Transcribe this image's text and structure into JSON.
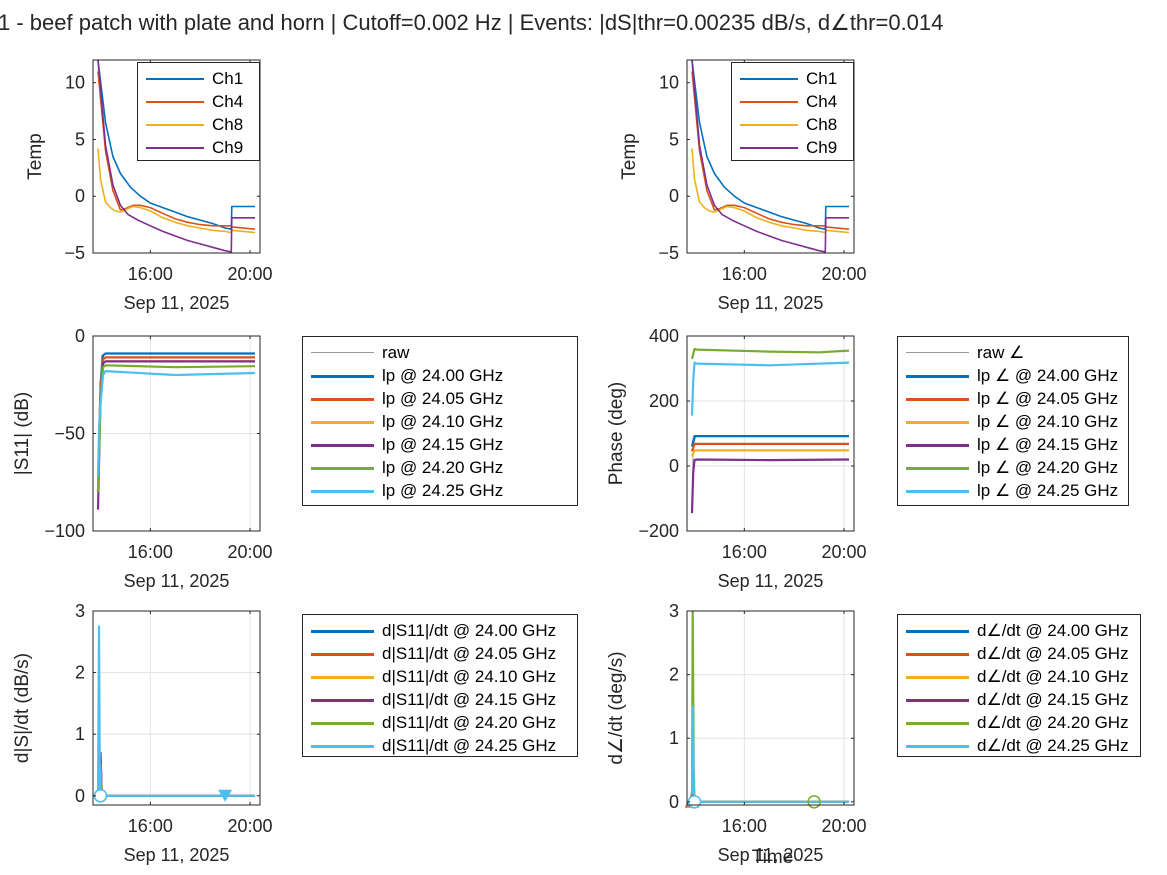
{
  "figure": {
    "title": "1 - beef patch with plate and horn | Cutoff=0.002 Hz | Events: |dS|thr=0.00235 dB/s, d∠thr=0.014",
    "colors": {
      "blue": "#0072BD",
      "orange": "#D95319",
      "yellow": "#EDB120",
      "purple": "#7E2F8E",
      "green": "#77AC30",
      "cyan": "#4DBEEE",
      "gray": "#9a9a9a"
    }
  },
  "chart_data": [
    {
      "id": "temp_left",
      "type": "line",
      "ylabel": "Temp",
      "xlabel": "Sep 11, 2025",
      "xlim": [
        13.7,
        20.4
      ],
      "ylim": [
        -5,
        12
      ],
      "yticks": [
        -5,
        0,
        5,
        10
      ],
      "xticks": [
        16,
        20
      ],
      "xtick_labels": [
        "16:00",
        "20:00"
      ],
      "grid": false,
      "legend": "top-right",
      "series": [
        {
          "name": "Ch1",
          "color": "blue",
          "x": [
            13.9,
            14.2,
            14.5,
            14.8,
            15.2,
            15.6,
            16.0,
            16.5,
            17.0,
            17.5,
            18.0,
            18.5,
            19.0,
            19.25,
            19.27,
            20.2
          ],
          "y": [
            12,
            6.5,
            3.5,
            2.0,
            0.8,
            0.0,
            -0.6,
            -1.0,
            -1.4,
            -1.8,
            -2.1,
            -2.4,
            -2.8,
            -2.9,
            -0.9,
            -0.9
          ]
        },
        {
          "name": "Ch4",
          "color": "orange",
          "x": [
            13.9,
            14.2,
            14.5,
            14.8,
            15.0,
            15.3,
            15.6,
            16.0,
            16.5,
            17.0,
            17.5,
            18.0,
            18.5,
            19.0,
            19.25,
            19.27,
            20.2
          ],
          "y": [
            11,
            4.0,
            0.5,
            -1.2,
            -1.1,
            -0.8,
            -0.8,
            -1.0,
            -1.5,
            -2.0,
            -2.3,
            -2.5,
            -2.6,
            -2.6,
            -2.6,
            -2.7,
            -2.9
          ]
        },
        {
          "name": "Ch8",
          "color": "yellow",
          "x": [
            13.9,
            14.0,
            14.2,
            14.4,
            14.6,
            14.8,
            15.0,
            15.3,
            15.6,
            16.0,
            16.5,
            17.0,
            17.5,
            18.0,
            18.5,
            19.0,
            19.25,
            19.27,
            20.2
          ],
          "y": [
            4.2,
            1.5,
            -0.5,
            -1.0,
            -1.3,
            -1.4,
            -1.2,
            -0.9,
            -1.0,
            -1.3,
            -1.9,
            -2.3,
            -2.6,
            -2.8,
            -3.0,
            -3.1,
            -3.2,
            -3.0,
            -3.2
          ]
        },
        {
          "name": "Ch9",
          "color": "purple",
          "x": [
            13.9,
            14.2,
            14.5,
            14.8,
            15.1,
            15.5,
            16.0,
            16.5,
            17.0,
            17.5,
            18.0,
            18.5,
            19.0,
            19.25,
            19.27,
            20.2
          ],
          "y": [
            12,
            4.5,
            1.0,
            -0.8,
            -1.6,
            -2.1,
            -2.6,
            -3.1,
            -3.5,
            -3.9,
            -4.2,
            -4.5,
            -4.8,
            -4.9,
            -1.9,
            -1.9
          ]
        }
      ]
    },
    {
      "id": "temp_right",
      "type": "line",
      "ylabel": "Temp",
      "xlabel": "Sep 11, 2025",
      "xlim": [
        13.7,
        20.4
      ],
      "ylim": [
        -5,
        12
      ],
      "yticks": [
        -5,
        0,
        5,
        10
      ],
      "xticks": [
        16,
        20
      ],
      "xtick_labels": [
        "16:00",
        "20:00"
      ],
      "grid": false,
      "legend": "top-right",
      "series": [
        {
          "name": "Ch1",
          "color": "blue",
          "x": [
            13.9,
            14.2,
            14.5,
            14.8,
            15.2,
            15.6,
            16.0,
            16.5,
            17.0,
            17.5,
            18.0,
            18.5,
            19.0,
            19.25,
            19.27,
            20.2
          ],
          "y": [
            12,
            6.5,
            3.5,
            2.0,
            0.8,
            0.0,
            -0.6,
            -1.0,
            -1.4,
            -1.8,
            -2.1,
            -2.4,
            -2.8,
            -2.9,
            -0.9,
            -0.9
          ]
        },
        {
          "name": "Ch4",
          "color": "orange",
          "x": [
            13.9,
            14.2,
            14.5,
            14.8,
            15.0,
            15.3,
            15.6,
            16.0,
            16.5,
            17.0,
            17.5,
            18.0,
            18.5,
            19.0,
            19.25,
            19.27,
            20.2
          ],
          "y": [
            11,
            4.0,
            0.5,
            -1.2,
            -1.1,
            -0.8,
            -0.8,
            -1.0,
            -1.5,
            -2.0,
            -2.3,
            -2.5,
            -2.6,
            -2.6,
            -2.6,
            -2.7,
            -2.9
          ]
        },
        {
          "name": "Ch8",
          "color": "yellow",
          "x": [
            13.9,
            14.0,
            14.2,
            14.4,
            14.6,
            14.8,
            15.0,
            15.3,
            15.6,
            16.0,
            16.5,
            17.0,
            17.5,
            18.0,
            18.5,
            19.0,
            19.25,
            19.27,
            20.2
          ],
          "y": [
            4.2,
            1.5,
            -0.5,
            -1.0,
            -1.3,
            -1.4,
            -1.2,
            -0.9,
            -1.0,
            -1.3,
            -1.9,
            -2.3,
            -2.6,
            -2.8,
            -3.0,
            -3.1,
            -3.2,
            -3.0,
            -3.2
          ]
        },
        {
          "name": "Ch9",
          "color": "purple",
          "x": [
            13.9,
            14.2,
            14.5,
            14.8,
            15.1,
            15.5,
            16.0,
            16.5,
            17.0,
            17.5,
            18.0,
            18.5,
            19.0,
            19.25,
            19.27,
            20.2
          ],
          "y": [
            12,
            4.5,
            1.0,
            -0.8,
            -1.6,
            -2.1,
            -2.6,
            -3.1,
            -3.5,
            -3.9,
            -4.2,
            -4.5,
            -4.8,
            -4.9,
            -1.9,
            -1.9
          ]
        }
      ]
    },
    {
      "id": "s11_mag",
      "type": "line",
      "ylabel": "|S11| (dB)",
      "xlabel": "Sep 11, 2025",
      "xlim": [
        13.7,
        20.4
      ],
      "ylim": [
        -100,
        0
      ],
      "yticks": [
        -100,
        -50,
        0
      ],
      "xticks": [
        16,
        20
      ],
      "xtick_labels": [
        "16:00",
        "20:00"
      ],
      "grid": true,
      "legend": "outside-right",
      "series": [
        {
          "name": "raw",
          "color": "gray",
          "x": [
            13.9,
            13.95,
            14.05,
            14.2,
            20.2
          ],
          "y": [
            -88,
            -40,
            -10,
            -9,
            -9
          ]
        },
        {
          "name": "lp @ 24.00 GHz",
          "color": "blue",
          "x": [
            13.9,
            14.0,
            14.1,
            14.2,
            20.2
          ],
          "y": [
            -80,
            -25,
            -10,
            -9,
            -9
          ]
        },
        {
          "name": "lp @ 24.05 GHz",
          "color": "orange",
          "x": [
            13.9,
            14.0,
            14.1,
            14.2,
            20.2
          ],
          "y": [
            -80,
            -28,
            -12,
            -11,
            -11
          ]
        },
        {
          "name": "lp @ 24.10 GHz",
          "color": "yellow",
          "x": [
            13.9,
            14.0,
            14.1,
            14.2,
            20.2
          ],
          "y": [
            -80,
            -30,
            -14,
            -13,
            -13
          ]
        },
        {
          "name": "lp @ 24.15 GHz",
          "color": "purple",
          "x": [
            13.9,
            14.0,
            14.1,
            14.2,
            20.2
          ],
          "y": [
            -89,
            -32,
            -14,
            -13,
            -13
          ]
        },
        {
          "name": "lp @ 24.20 GHz",
          "color": "green",
          "x": [
            13.9,
            14.0,
            14.1,
            14.2,
            17.0,
            20.2
          ],
          "y": [
            -80,
            -34,
            -16,
            -15,
            -16,
            -15.5
          ]
        },
        {
          "name": "lp @ 24.25 GHz",
          "color": "cyan",
          "x": [
            13.9,
            13.95,
            14.0,
            14.1,
            14.2,
            17.0,
            20.2
          ],
          "y": [
            -72,
            -45,
            -35,
            -20,
            -18,
            -20,
            -19
          ]
        }
      ]
    },
    {
      "id": "phase",
      "type": "line",
      "ylabel": "Phase (deg)",
      "xlabel": "Sep 11, 2025",
      "xlim": [
        13.7,
        20.4
      ],
      "ylim": [
        -200,
        400
      ],
      "yticks": [
        -200,
        0,
        200,
        400
      ],
      "xticks": [
        16,
        20
      ],
      "xtick_labels": [
        "16:00",
        "20:00"
      ],
      "grid": true,
      "legend": "outside-right",
      "series": [
        {
          "name": "raw ∠",
          "color": "gray",
          "x": [
            13.9,
            13.95,
            14.05,
            20.2
          ],
          "y": [
            -140,
            60,
            92,
            92
          ]
        },
        {
          "name": "lp ∠ @ 24.00 GHz",
          "color": "blue",
          "x": [
            13.9,
            14.0,
            14.1,
            20.2
          ],
          "y": [
            60,
            92,
            92,
            92
          ]
        },
        {
          "name": "lp ∠ @ 24.05 GHz",
          "color": "orange",
          "x": [
            13.9,
            14.0,
            14.1,
            20.2
          ],
          "y": [
            45,
            68,
            68,
            68
          ]
        },
        {
          "name": "lp ∠ @ 24.10 GHz",
          "color": "yellow",
          "x": [
            13.9,
            14.0,
            14.1,
            20.2
          ],
          "y": [
            30,
            48,
            48,
            48
          ]
        },
        {
          "name": "lp ∠ @ 24.15 GHz",
          "color": "purple",
          "x": [
            13.9,
            13.95,
            14.0,
            14.1,
            17.0,
            20.2
          ],
          "y": [
            -145,
            -20,
            18,
            20,
            18,
            20
          ]
        },
        {
          "name": "lp ∠ @ 24.20 GHz",
          "color": "green",
          "x": [
            13.9,
            14.0,
            14.1,
            17.0,
            19.0,
            20.2
          ],
          "y": [
            330,
            360,
            358,
            352,
            350,
            355
          ]
        },
        {
          "name": "lp ∠ @ 24.25 GHz",
          "color": "cyan",
          "x": [
            13.9,
            13.95,
            14.0,
            14.1,
            17.0,
            20.2
          ],
          "y": [
            155,
            260,
            318,
            315,
            310,
            318
          ]
        }
      ]
    },
    {
      "id": "dS_dt",
      "type": "line",
      "ylabel": "d|S|/dt (dB/s)",
      "xlabel": "Sep 11, 2025",
      "xlim": [
        13.7,
        20.4
      ],
      "ylim": [
        -0.15,
        3.0
      ],
      "yticks": [
        0,
        1,
        2,
        3
      ],
      "xticks": [
        16,
        20
      ],
      "xtick_labels": [
        "16:00",
        "20:00"
      ],
      "grid": true,
      "legend": "outside-right",
      "series": [
        {
          "name": "d|S11|/dt @ 24.00 GHz",
          "color": "blue",
          "x": [
            13.9,
            14.0,
            14.05,
            14.2,
            20.2
          ],
          "y": [
            0,
            0.6,
            0.05,
            0.0,
            0.0
          ]
        },
        {
          "name": "d|S11|/dt @ 24.05 GHz",
          "color": "orange",
          "x": [
            13.9,
            14.0,
            14.05,
            14.2,
            20.2
          ],
          "y": [
            0,
            0.5,
            0.04,
            0.0,
            0.0
          ]
        },
        {
          "name": "d|S11|/dt @ 24.10 GHz",
          "color": "yellow",
          "x": [
            13.9,
            14.0,
            14.05,
            14.2,
            20.2
          ],
          "y": [
            0,
            0.4,
            0.03,
            0.0,
            0.0
          ]
        },
        {
          "name": "d|S11|/dt @ 24.15 GHz",
          "color": "purple",
          "x": [
            13.9,
            14.0,
            14.05,
            14.2,
            20.2
          ],
          "y": [
            0,
            0.7,
            0.05,
            0.0,
            0.0
          ]
        },
        {
          "name": "d|S11|/dt @ 24.20 GHz",
          "color": "green",
          "x": [
            13.9,
            14.0,
            14.05,
            14.2,
            20.2
          ],
          "y": [
            0,
            0.5,
            0.04,
            0.0,
            0.0
          ]
        },
        {
          "name": "d|S11|/dt @ 24.25 GHz",
          "color": "cyan",
          "x": [
            13.9,
            13.94,
            13.97,
            14.0,
            14.1,
            20.2
          ],
          "y": [
            0,
            2.75,
            0.6,
            0.05,
            0.0,
            0.0
          ]
        }
      ],
      "markers": [
        {
          "shape": "circle",
          "color": "green",
          "x": 14.0,
          "y": 0.0
        },
        {
          "shape": "circle",
          "color": "cyan",
          "x": 14.0,
          "y": 0.0
        },
        {
          "shape": "triangle-down",
          "color": "cyan",
          "x": 19.0,
          "y": 0.0
        }
      ]
    },
    {
      "id": "dphase_dt",
      "type": "line",
      "ylabel": "d∠/dt (deg/s)",
      "xlabel": "Sep 11, 2025",
      "xlabel_overlay": "Time",
      "xlim": [
        13.7,
        20.4
      ],
      "ylim": [
        -0.05,
        3.0
      ],
      "yticks": [
        0,
        1,
        2,
        3
      ],
      "xticks": [
        16,
        20
      ],
      "xtick_labels": [
        "16:00",
        "20:00"
      ],
      "grid": true,
      "legend": "outside-right",
      "series": [
        {
          "name": "d∠/dt @ 24.00 GHz",
          "color": "blue",
          "x": [
            13.9,
            13.95,
            14.0,
            14.2,
            20.2
          ],
          "y": [
            0,
            0.15,
            0.01,
            0.0,
            0.0
          ]
        },
        {
          "name": "d∠/dt @ 24.05 GHz",
          "color": "orange",
          "x": [
            13.85,
            13.9,
            13.95,
            14.2,
            20.2
          ],
          "y": [
            0,
            0.15,
            0.0,
            0.0,
            0.0
          ]
        },
        {
          "name": "d∠/dt @ 24.10 GHz",
          "color": "yellow",
          "x": [
            13.9,
            13.95,
            14.0,
            14.2,
            20.2
          ],
          "y": [
            0,
            0.1,
            0.0,
            0.0,
            0.0
          ]
        },
        {
          "name": "d∠/dt @ 24.15 GHz",
          "color": "purple",
          "x": [
            13.9,
            13.95,
            14.0,
            14.2,
            20.2
          ],
          "y": [
            0,
            0.25,
            0.0,
            0.0,
            0.0
          ]
        },
        {
          "name": "d∠/dt @ 24.20 GHz",
          "color": "green",
          "x": [
            13.9,
            13.93,
            13.97,
            14.0,
            14.2,
            20.2
          ],
          "y": [
            0,
            3.0,
            0.5,
            0.02,
            0.0,
            0.0
          ]
        },
        {
          "name": "d∠/dt @ 24.25 GHz",
          "color": "cyan",
          "x": [
            13.9,
            13.93,
            13.97,
            14.0,
            14.2,
            20.2
          ],
          "y": [
            0,
            1.5,
            0.2,
            0.01,
            0.0,
            0.0
          ]
        }
      ],
      "markers": [
        {
          "shape": "triangle-up",
          "color": "orange",
          "x": 13.9,
          "y": 0.0
        },
        {
          "shape": "circle",
          "color": "cyan",
          "x": 14.0,
          "y": 0.0
        },
        {
          "shape": "circle",
          "color": "green",
          "x": 18.8,
          "y": 0.0
        }
      ]
    }
  ]
}
